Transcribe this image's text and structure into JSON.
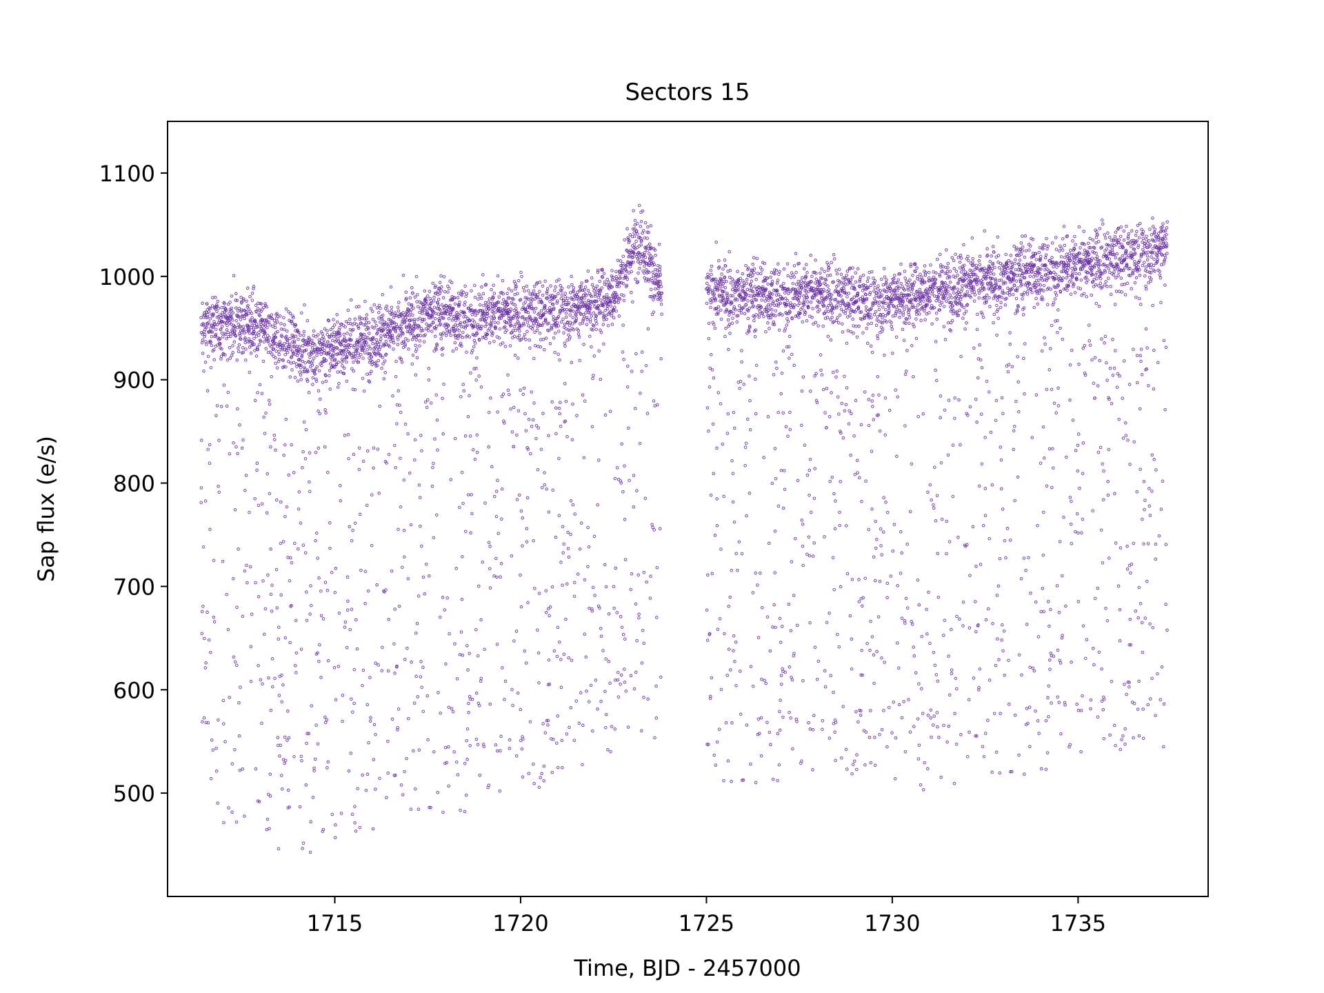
{
  "chart_data": {
    "type": "scatter",
    "title": "Sectors 15",
    "xlabel": "Time, BJD - 2457000",
    "ylabel": "Sap flux (e/s)",
    "xlim": [
      1710.5,
      1738.5
    ],
    "ylim": [
      400,
      1150
    ],
    "x_ticks": [
      1715,
      1720,
      1725,
      1730,
      1735
    ],
    "y_ticks": [
      500,
      600,
      700,
      800,
      900,
      1000,
      1100
    ],
    "grid": false,
    "legend": "none",
    "marker": "hollow-circle",
    "colors": {
      "points": "#6a2fa6",
      "axes": "#000000",
      "background": "#ffffff"
    },
    "series": [
      {
        "segments": [
          {
            "x_range": [
              1711.4,
              1723.8
            ],
            "note": "first orbit"
          },
          {
            "x_range": [
              1725.0,
              1737.4
            ],
            "note": "second orbit"
          }
        ],
        "trend_x": [
          1711.4,
          1712.5,
          1713.5,
          1714.5,
          1715.5,
          1716.5,
          1717.5,
          1718.5,
          1719.5,
          1720.5,
          1721.5,
          1722.5,
          1723.2,
          1723.8,
          1725.0,
          1726.5,
          1728.0,
          1729.5,
          1731.0,
          1732.5,
          1734.0,
          1735.5,
          1736.5,
          1737.4
        ],
        "trend_y": [
          950,
          955,
          940,
          925,
          935,
          945,
          965,
          960,
          965,
          965,
          970,
          980,
          1040,
          980,
          985,
          980,
          985,
          975,
          985,
          995,
          1005,
          1015,
          1020,
          1030
        ],
        "scatter_low_edge": [
          470,
          460,
          445,
          440,
          450,
          470,
          480,
          480,
          490,
          500,
          520,
          540,
          560,
          510,
          500,
          510,
          510,
          515,
          500,
          510,
          520,
          530,
          540,
          540
        ]
      }
    ]
  }
}
